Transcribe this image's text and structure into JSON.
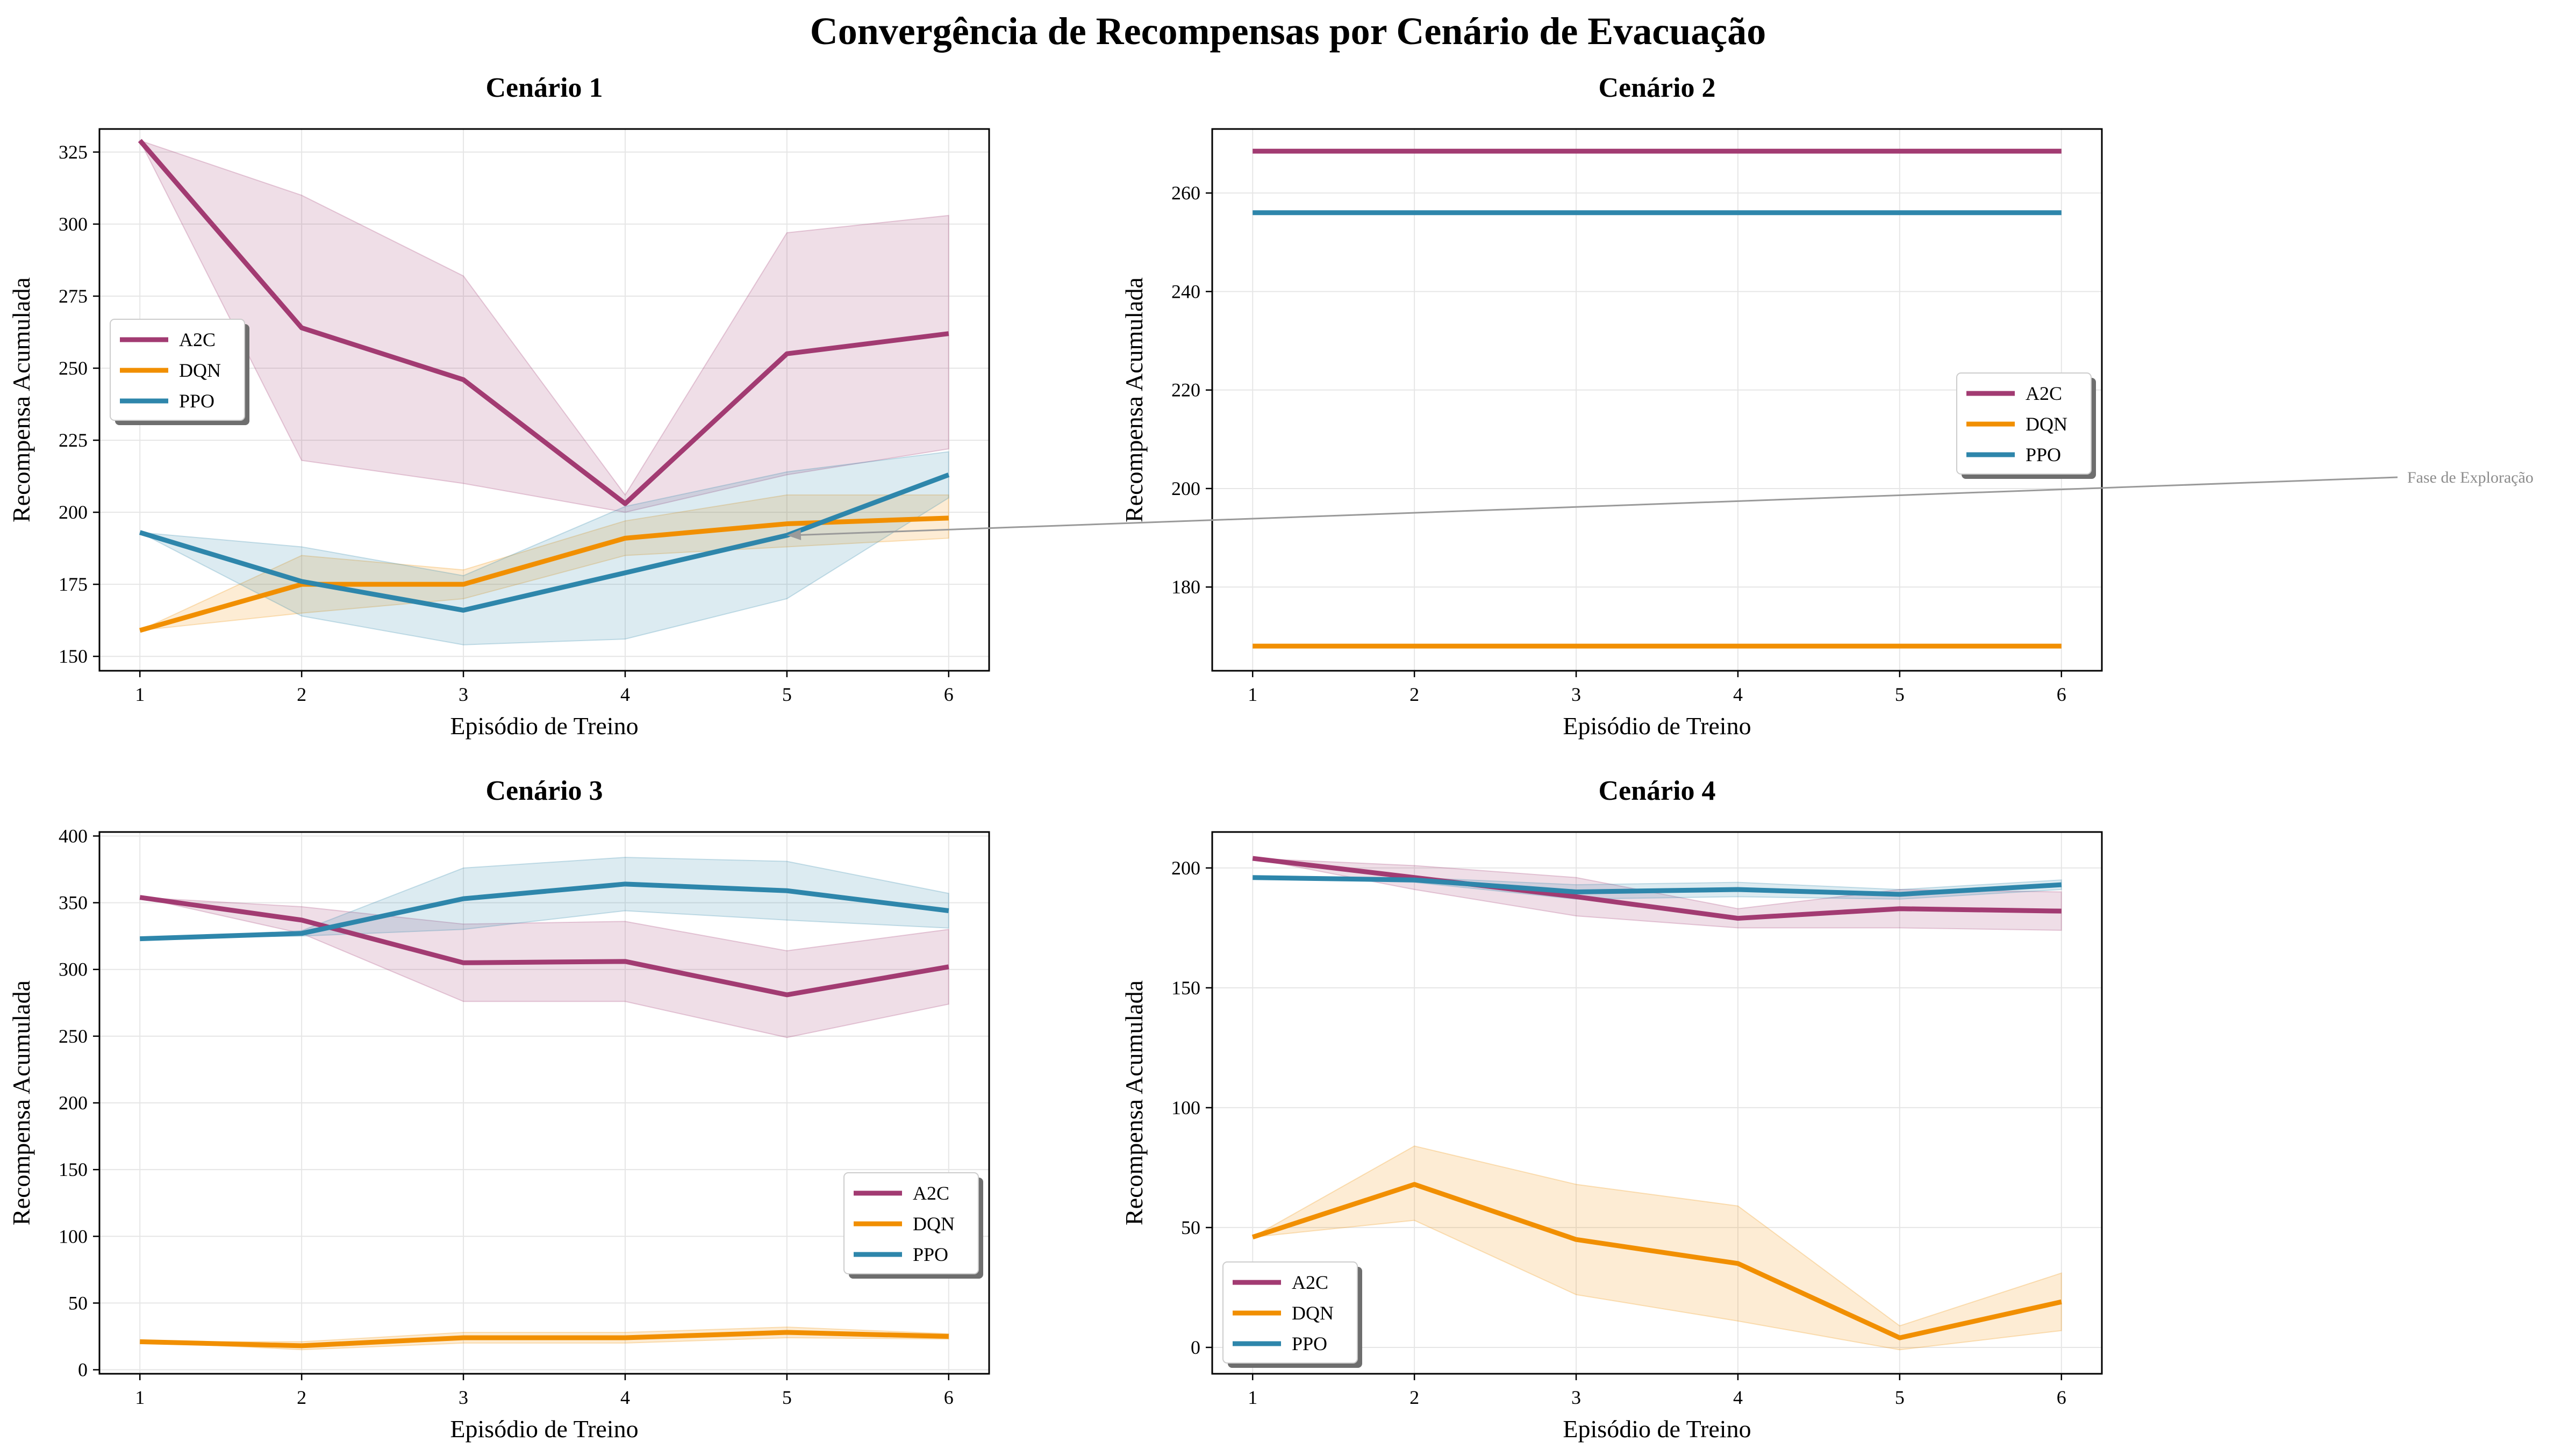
{
  "title": "Convergência de Recompensas por Cenário de Evacuação",
  "colors": {
    "A2C": "#A23B72",
    "DQN": "#F18F01",
    "PPO": "#2E86AB"
  },
  "annotation": {
    "text": "Fase de Exploração"
  },
  "chart_data": [
    {
      "type": "line",
      "title": "Cenário 1",
      "xlabel": "Episódio de Treino",
      "ylabel": "Recompensa Acumulada",
      "x": [
        1,
        2,
        3,
        4,
        5,
        6
      ],
      "xlim": [
        0.75,
        6.25
      ],
      "ylim": [
        145,
        333
      ],
      "yticks": [
        150,
        175,
        200,
        225,
        250,
        275,
        300,
        325
      ],
      "legend": "center-left",
      "grid": true,
      "series": [
        {
          "name": "A2C",
          "values": [
            329,
            264,
            246,
            203,
            255,
            262
          ],
          "lower": [
            329,
            218,
            210,
            200,
            213,
            222
          ],
          "upper": [
            329,
            310,
            282,
            206,
            297,
            303
          ]
        },
        {
          "name": "DQN",
          "values": [
            159,
            175,
            175,
            191,
            196,
            198
          ],
          "lower": [
            159,
            165,
            170,
            185,
            188,
            191
          ],
          "upper": [
            159,
            185,
            180,
            197,
            206,
            206
          ]
        },
        {
          "name": "PPO",
          "values": [
            193,
            176,
            166,
            179,
            192,
            213
          ],
          "lower": [
            193,
            164,
            154,
            156,
            170,
            205
          ],
          "upper": [
            193,
            188,
            178,
            202,
            214,
            221
          ]
        }
      ]
    },
    {
      "type": "line",
      "title": "Cenário 2",
      "xlabel": "Episódio de Treino",
      "ylabel": "Recompensa Acumulada",
      "x": [
        1,
        2,
        3,
        4,
        5,
        6
      ],
      "xlim": [
        0.75,
        6.25
      ],
      "ylim": [
        163,
        273
      ],
      "yticks": [
        180,
        200,
        220,
        240,
        260
      ],
      "legend": "center-right",
      "grid": true,
      "series": [
        {
          "name": "A2C",
          "values": [
            268.5,
            268.5,
            268.5,
            268.5,
            268.5,
            268.5
          ],
          "lower": [
            268.5,
            268.5,
            268.5,
            268.5,
            268.5,
            268.5
          ],
          "upper": [
            268.5,
            268.5,
            268.5,
            268.5,
            268.5,
            268.5
          ]
        },
        {
          "name": "DQN",
          "values": [
            168,
            168,
            168,
            168,
            168,
            168
          ],
          "lower": [
            168,
            168,
            168,
            168,
            168,
            168
          ],
          "upper": [
            168,
            168,
            168,
            168,
            168,
            168
          ]
        },
        {
          "name": "PPO",
          "values": [
            256,
            256,
            256,
            256,
            256,
            256
          ],
          "lower": [
            256,
            256,
            256,
            256,
            256,
            256
          ],
          "upper": [
            256,
            256,
            256,
            256,
            256,
            256
          ]
        }
      ]
    },
    {
      "type": "line",
      "title": "Cenário 3",
      "xlabel": "Episódio de Treino",
      "ylabel": "Recompensa Acumulada",
      "x": [
        1,
        2,
        3,
        4,
        5,
        6
      ],
      "xlim": [
        0.75,
        6.25
      ],
      "ylim": [
        -3,
        403
      ],
      "yticks": [
        0,
        50,
        100,
        150,
        200,
        250,
        300,
        350,
        400
      ],
      "legend": "center-right",
      "grid": true,
      "series": [
        {
          "name": "A2C",
          "values": [
            354,
            337,
            305,
            306,
            281,
            302
          ],
          "lower": [
            354,
            327,
            276,
            276,
            249,
            274
          ],
          "upper": [
            354,
            347,
            334,
            336,
            314,
            330
          ]
        },
        {
          "name": "DQN",
          "values": [
            21,
            18,
            24,
            24,
            28,
            25
          ],
          "lower": [
            21,
            15,
            20,
            20,
            24,
            23
          ],
          "upper": [
            21,
            21,
            28,
            28,
            32,
            27
          ]
        },
        {
          "name": "PPO",
          "values": [
            323,
            327,
            353,
            364,
            359,
            344
          ],
          "lower": [
            323,
            325,
            330,
            344,
            337,
            331
          ],
          "upper": [
            323,
            329,
            376,
            384,
            381,
            357
          ]
        }
      ]
    },
    {
      "type": "line",
      "title": "Cenário 4",
      "xlabel": "Episódio de Treino",
      "ylabel": "Recompensa Acumulada",
      "x": [
        1,
        2,
        3,
        4,
        5,
        6
      ],
      "xlim": [
        0.75,
        6.25
      ],
      "ylim": [
        -11,
        215
      ],
      "yticks": [
        0,
        50,
        100,
        150,
        200
      ],
      "legend": "lower-left",
      "grid": true,
      "series": [
        {
          "name": "A2C",
          "values": [
            204,
            196,
            188,
            179,
            183,
            182
          ],
          "lower": [
            204,
            191,
            180,
            175,
            175,
            174
          ],
          "upper": [
            204,
            201,
            196,
            183,
            191,
            190
          ]
        },
        {
          "name": "DQN",
          "values": [
            46,
            68,
            45,
            35,
            4,
            19
          ],
          "lower": [
            46,
            53,
            22,
            11,
            -1,
            7
          ],
          "upper": [
            46,
            84,
            68,
            59,
            9,
            31
          ]
        },
        {
          "name": "PPO",
          "values": [
            196,
            195,
            190,
            191,
            189,
            193
          ],
          "lower": [
            196,
            194,
            187,
            188,
            187,
            191
          ],
          "upper": [
            196,
            196,
            193,
            194,
            191,
            195
          ]
        }
      ]
    }
  ]
}
